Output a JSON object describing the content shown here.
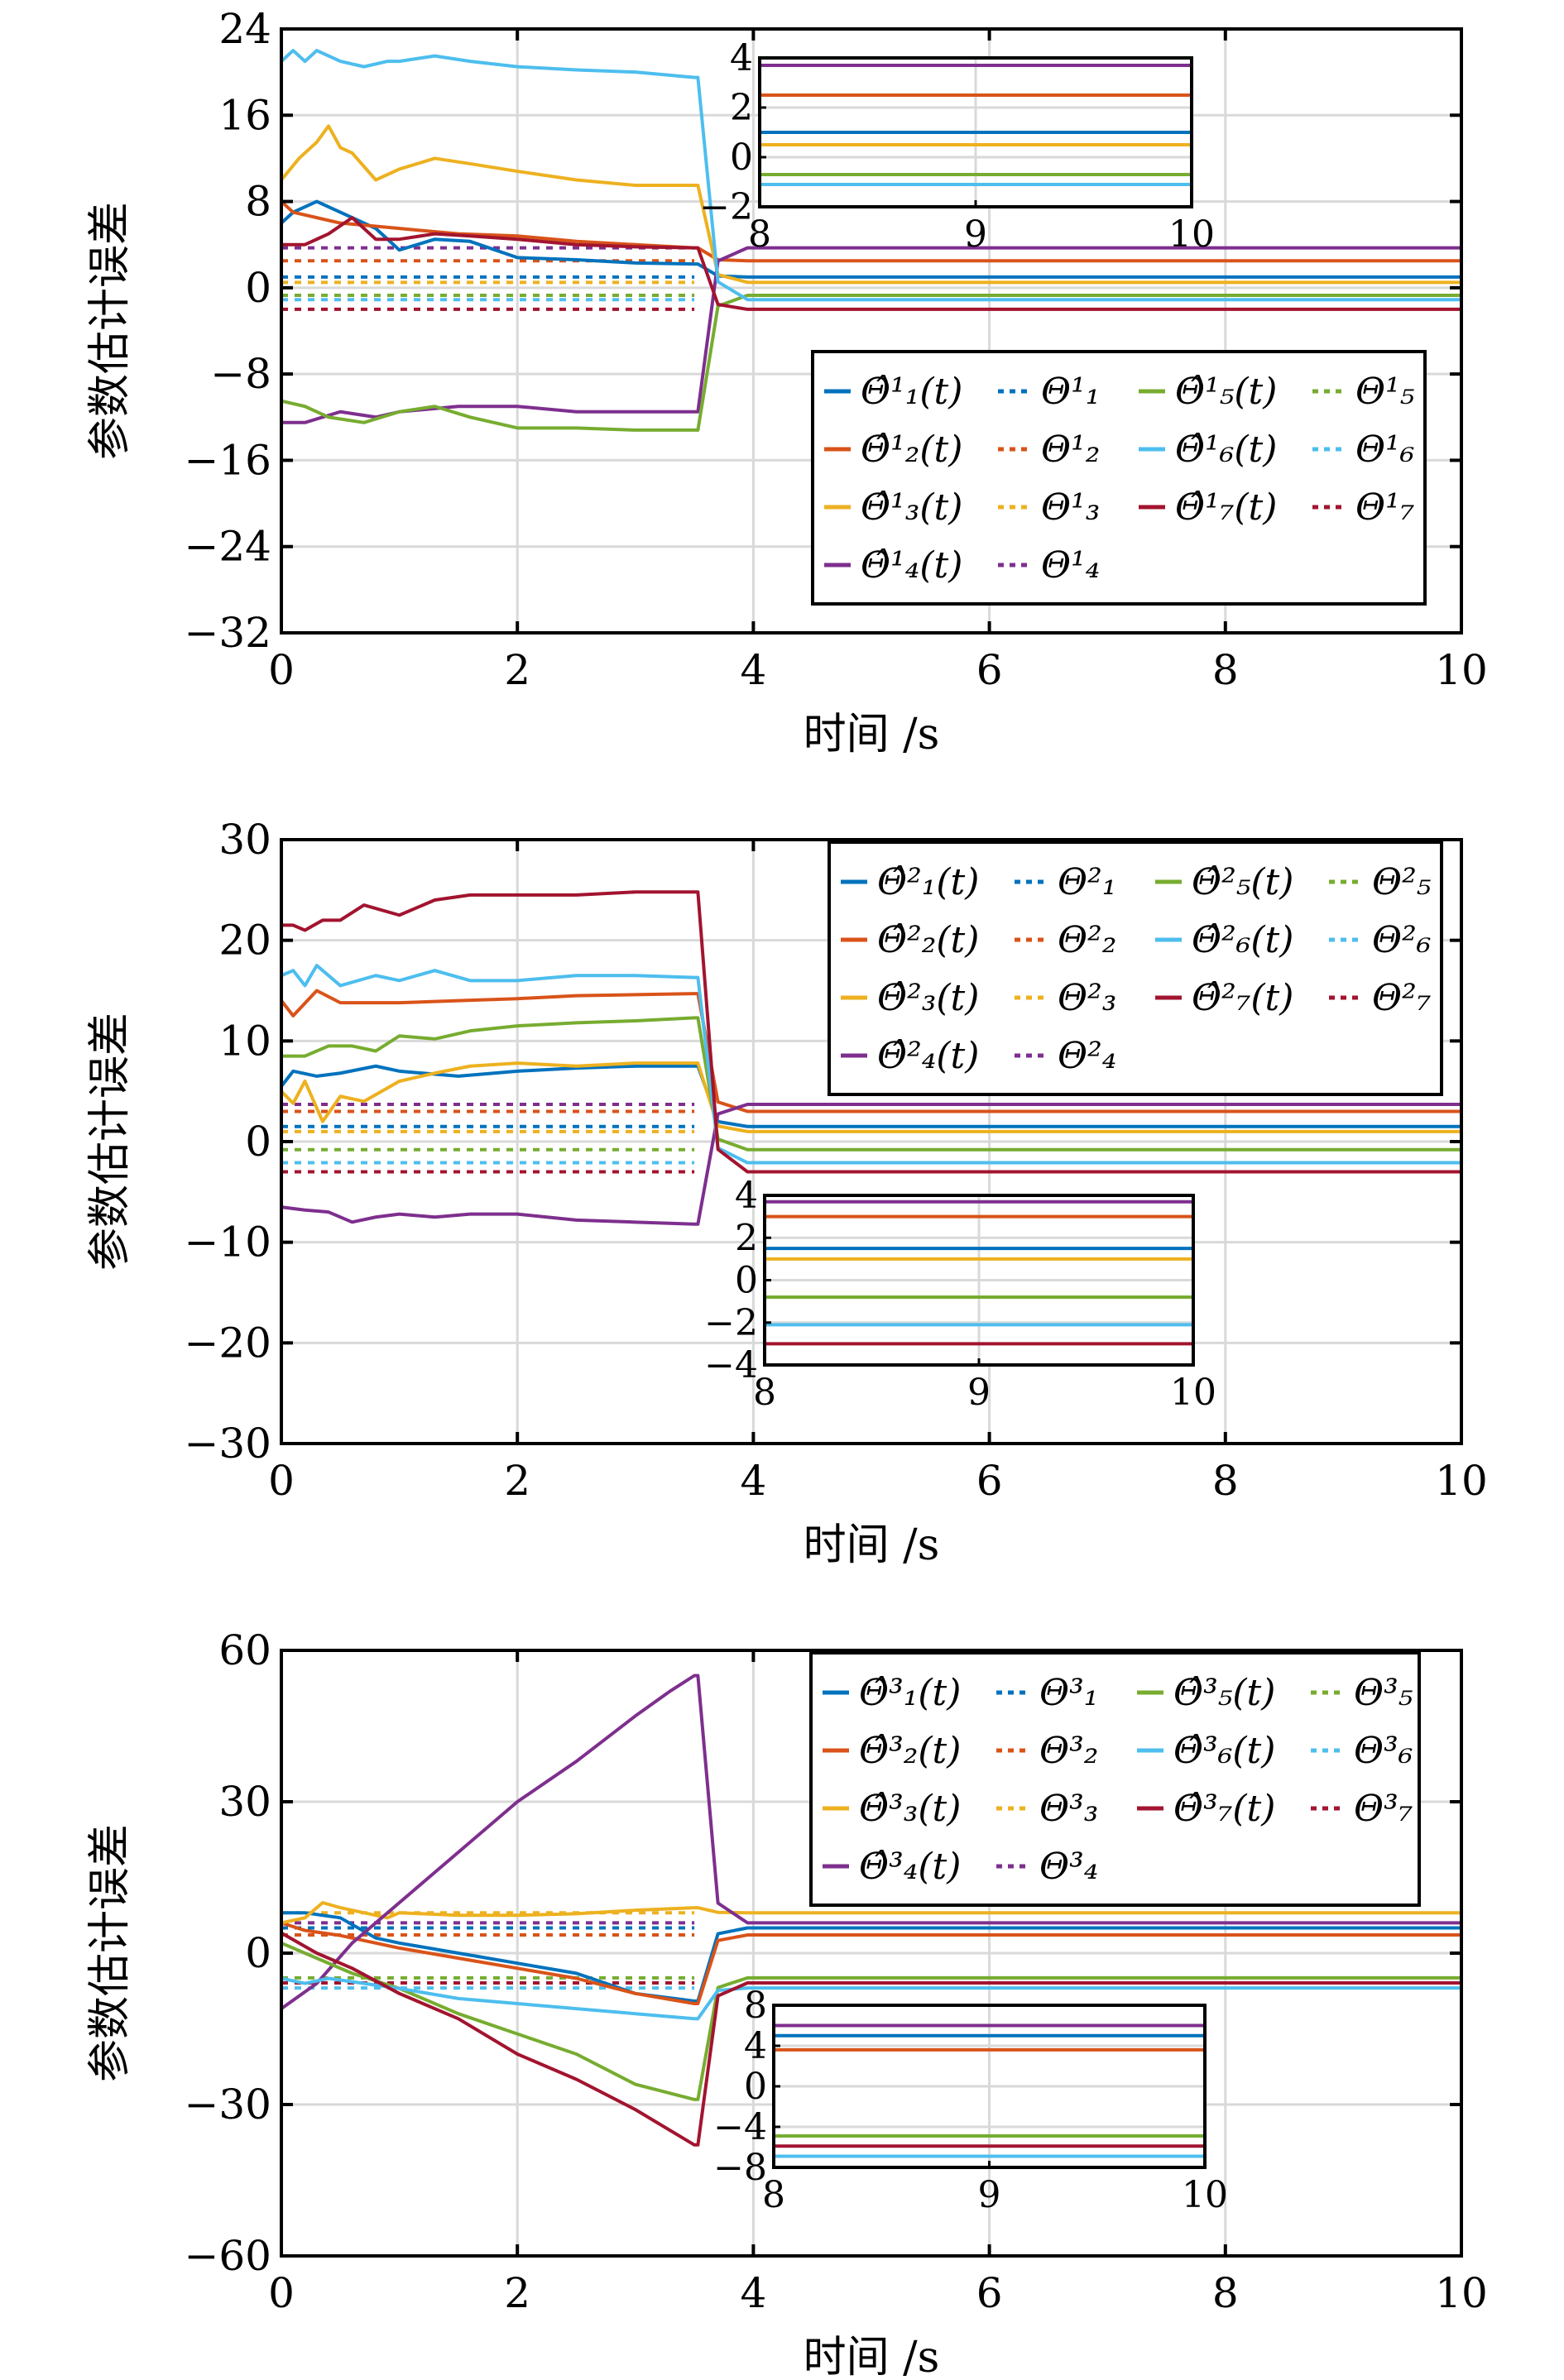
{
  "colors": [
    "#0072BD",
    "#D95319",
    "#EDB120",
    "#7E2F8E",
    "#77AC30",
    "#4DBEEE",
    "#A2142F"
  ],
  "chart_data": [
    {
      "type": "line",
      "title": "",
      "xlabel": "时间 /s",
      "ylabel": "参数估计误差",
      "xlim": [
        0,
        10
      ],
      "ylim": [
        -32,
        24
      ],
      "xticks": [
        "0",
        "2",
        "4",
        "6",
        "8",
        "10"
      ],
      "yticks": [
        "24",
        "16",
        "8",
        "0",
        "−8",
        "−16",
        "−24",
        "−32"
      ],
      "ytick_values": [
        24,
        16,
        8,
        0,
        -8,
        -16,
        -24,
        -32
      ],
      "xtick_values": [
        0,
        2,
        4,
        6,
        8,
        10
      ],
      "grid": true,
      "legend_position": "lower-right",
      "switch_time": 3.5,
      "legend": [
        {
          "est": "Θ̂¹₁(t)",
          "true": "Θ¹₁"
        },
        {
          "est": "Θ̂¹₂(t)",
          "true": "Θ¹₂"
        },
        {
          "est": "Θ̂¹₃(t)",
          "true": "Θ¹₃"
        },
        {
          "est": "Θ̂¹₄(t)",
          "true": "Θ¹₄"
        },
        {
          "est": "Θ̂¹₅(t)",
          "true": "Θ¹₅"
        },
        {
          "est": "Θ̂¹₆(t)",
          "true": "Θ¹₆"
        },
        {
          "est": "Θ̂¹₇(t)",
          "true": "Θ¹₇"
        }
      ],
      "series": [
        {
          "name": "Θ̂¹₁(t)",
          "true_value": 1.0,
          "x": [
            0,
            0.1,
            0.3,
            0.5,
            0.8,
            1.0,
            1.3,
            1.6,
            2.0,
            2.5,
            3.0,
            3.5
          ],
          "y": [
            6,
            7,
            8,
            7,
            5.5,
            3.5,
            4.5,
            4.3,
            2.8,
            2.6,
            2.3,
            2.2
          ]
        },
        {
          "name": "Θ̂¹₂(t)",
          "true_value": 2.5,
          "x": [
            0,
            0.1,
            0.3,
            0.5,
            0.8,
            1.0,
            1.5,
            2.0,
            2.5,
            3.0,
            3.5
          ],
          "y": [
            8,
            7,
            6.5,
            6,
            5.7,
            5.5,
            5,
            4.8,
            4.3,
            4,
            3.7
          ]
        },
        {
          "name": "Θ̂¹₃(t)",
          "true_value": 0.5,
          "x": [
            0,
            0.15,
            0.3,
            0.4,
            0.5,
            0.6,
            0.8,
            1.0,
            1.3,
            1.6,
            2.0,
            2.5,
            3.0,
            3.5
          ],
          "y": [
            10,
            12,
            13.5,
            15,
            13,
            12.5,
            10,
            11,
            12,
            11.5,
            10.8,
            10,
            9.5,
            9.5
          ]
        },
        {
          "name": "Θ̂¹₄(t)",
          "true_value": 3.7,
          "x": [
            0,
            0.2,
            0.5,
            0.8,
            1.0,
            1.5,
            2.0,
            2.5,
            3.0,
            3.5
          ],
          "y": [
            -12.5,
            -12.5,
            -11.5,
            -12,
            -11.5,
            -11,
            -11,
            -11.5,
            -11.5,
            -11.5
          ]
        },
        {
          "name": "Θ̂¹₅(t)",
          "true_value": -0.7,
          "x": [
            0,
            0.2,
            0.4,
            0.7,
            1.0,
            1.3,
            1.6,
            2.0,
            2.5,
            3.0,
            3.5
          ],
          "y": [
            -10.5,
            -11,
            -12,
            -12.5,
            -11.5,
            -11,
            -12,
            -13,
            -13,
            -13.2,
            -13.2
          ]
        },
        {
          "name": "Θ̂¹₆(t)",
          "true_value": -1.1,
          "x": [
            0,
            0.1,
            0.2,
            0.3,
            0.5,
            0.7,
            0.9,
            1.0,
            1.3,
            1.6,
            2.0,
            2.5,
            3.0,
            3.5
          ],
          "y": [
            21,
            22,
            21,
            22,
            21,
            20.5,
            21,
            21,
            21.5,
            21,
            20.5,
            20.2,
            20,
            19.5
          ]
        },
        {
          "name": "Θ̂¹₇(t)",
          "true_value": -2.0,
          "x": [
            0,
            0.2,
            0.4,
            0.6,
            0.8,
            1.0,
            1.3,
            1.6,
            2.0,
            2.5,
            3.0,
            3.5
          ],
          "y": [
            4,
            4,
            5,
            6.5,
            4.5,
            4.5,
            5,
            4.8,
            4.5,
            4,
            3.8,
            3.7
          ]
        }
      ],
      "inset": {
        "xlim": [
          8,
          10
        ],
        "ylim": [
          -2,
          4
        ],
        "xticks": [
          "8",
          "9",
          "10"
        ],
        "xtick_values": [
          8,
          9,
          10
        ],
        "yticks": [
          "4",
          "2",
          "0",
          "−2"
        ],
        "ytick_values": [
          4,
          2,
          0,
          -2
        ],
        "values": [
          1.0,
          2.5,
          0.5,
          3.7,
          -0.7,
          -1.1,
          -2.0
        ]
      }
    },
    {
      "type": "line",
      "title": "",
      "xlabel": "时间 /s",
      "ylabel": "参数估计误差",
      "xlim": [
        0,
        10
      ],
      "ylim": [
        -30,
        30
      ],
      "xticks": [
        "0",
        "2",
        "4",
        "6",
        "8",
        "10"
      ],
      "yticks": [
        "30",
        "20",
        "10",
        "0",
        "−10",
        "−20",
        "−30"
      ],
      "ytick_values": [
        30,
        20,
        10,
        0,
        -10,
        -20,
        -30
      ],
      "xtick_values": [
        0,
        2,
        4,
        6,
        8,
        10
      ],
      "grid": true,
      "legend_position": "upper-right",
      "switch_time": 3.5,
      "legend": [
        {
          "est": "Θ̂²₁(t)",
          "true": "Θ²₁"
        },
        {
          "est": "Θ̂²₂(t)",
          "true": "Θ²₂"
        },
        {
          "est": "Θ̂²₃(t)",
          "true": "Θ²₃"
        },
        {
          "est": "Θ̂²₄(t)",
          "true": "Θ²₄"
        },
        {
          "est": "Θ̂²₅(t)",
          "true": "Θ²₅"
        },
        {
          "est": "Θ̂²₆(t)",
          "true": "Θ²₆"
        },
        {
          "est": "Θ̂²₇(t)",
          "true": "Θ²₇"
        }
      ],
      "series": [
        {
          "name": "Θ̂²₁(t)",
          "true_value": 1.5,
          "x": [
            0,
            0.1,
            0.3,
            0.5,
            0.8,
            1.0,
            1.5,
            2.0,
            2.5,
            3.0,
            3.5
          ],
          "y": [
            5.5,
            7,
            6.5,
            6.8,
            7.5,
            7,
            6.5,
            7,
            7.3,
            7.5,
            7.5
          ]
        },
        {
          "name": "Θ̂²₂(t)",
          "true_value": 3.0,
          "x": [
            0,
            0.1,
            0.3,
            0.5,
            1.0,
            1.5,
            2.0,
            2.5,
            3.0,
            3.5
          ],
          "y": [
            14,
            12.5,
            15,
            13.8,
            13.8,
            14,
            14.2,
            14.5,
            14.6,
            14.7
          ]
        },
        {
          "name": "Θ̂²₃(t)",
          "true_value": 1.0,
          "x": [
            0,
            0.1,
            0.2,
            0.35,
            0.5,
            0.7,
            1.0,
            1.3,
            1.6,
            2.0,
            2.5,
            3.0,
            3.5
          ],
          "y": [
            5,
            3.8,
            6,
            2,
            4.5,
            4,
            6,
            6.8,
            7.5,
            7.8,
            7.5,
            7.8,
            7.8
          ]
        },
        {
          "name": "Θ̂²₄(t)",
          "true_value": 3.7,
          "x": [
            0,
            0.2,
            0.4,
            0.6,
            0.8,
            1.0,
            1.3,
            1.6,
            2.0,
            2.5,
            3.0,
            3.5
          ],
          "y": [
            -6.5,
            -6.8,
            -7,
            -8,
            -7.5,
            -7.2,
            -7.5,
            -7.2,
            -7.2,
            -7.8,
            -8,
            -8.2
          ]
        },
        {
          "name": "Θ̂²₅(t)",
          "true_value": -0.8,
          "x": [
            0,
            0.2,
            0.4,
            0.6,
            0.8,
            1.0,
            1.3,
            1.6,
            2.0,
            2.5,
            3.0,
            3.5
          ],
          "y": [
            8.5,
            8.5,
            9.5,
            9.5,
            9,
            10.5,
            10.2,
            11,
            11.5,
            11.8,
            12,
            12.3
          ]
        },
        {
          "name": "Θ̂²₆(t)",
          "true_value": -2.1,
          "x": [
            0,
            0.1,
            0.2,
            0.3,
            0.5,
            0.8,
            1.0,
            1.3,
            1.6,
            2.0,
            2.5,
            3.0,
            3.5
          ],
          "y": [
            16.5,
            17,
            15.5,
            17.5,
            15.5,
            16.5,
            16,
            17,
            16,
            16,
            16.5,
            16.5,
            16.3
          ]
        },
        {
          "name": "Θ̂²₇(t)",
          "true_value": -3.0,
          "x": [
            0,
            0.1,
            0.2,
            0.35,
            0.5,
            0.7,
            1.0,
            1.3,
            1.6,
            2.0,
            2.5,
            3.0,
            3.5
          ],
          "y": [
            21.5,
            21.5,
            21,
            22,
            22,
            23.5,
            22.5,
            24,
            24.5,
            24.5,
            24.5,
            24.8,
            24.8
          ]
        }
      ],
      "inset": {
        "xlim": [
          8,
          10
        ],
        "ylim": [
          -4,
          4
        ],
        "xticks": [
          "8",
          "9",
          "10"
        ],
        "xtick_values": [
          8,
          9,
          10
        ],
        "yticks": [
          "4",
          "2",
          "0",
          "−2",
          "−4"
        ],
        "ytick_values": [
          4,
          2,
          0,
          -2,
          -4
        ],
        "values": [
          1.5,
          3.0,
          1.0,
          3.7,
          -0.8,
          -2.1,
          -3.0
        ]
      }
    },
    {
      "type": "line",
      "title": "",
      "xlabel": "时间 /s",
      "ylabel": "参数估计误差",
      "xlim": [
        0,
        10
      ],
      "ylim": [
        -60,
        60
      ],
      "xticks": [
        "0",
        "2",
        "4",
        "6",
        "8",
        "10"
      ],
      "yticks": [
        "60",
        "30",
        "0",
        "−30",
        "−60"
      ],
      "ytick_values": [
        60,
        30,
        0,
        -30,
        -60
      ],
      "xtick_values": [
        0,
        2,
        4,
        6,
        8,
        10
      ],
      "grid": true,
      "legend_position": "upper-right",
      "switch_time": 3.5,
      "legend": [
        {
          "est": "Θ̂³₁(t)",
          "true": "Θ³₁"
        },
        {
          "est": "Θ̂³₂(t)",
          "true": "Θ³₂"
        },
        {
          "est": "Θ̂³₃(t)",
          "true": "Θ³₃"
        },
        {
          "est": "Θ̂³₄(t)",
          "true": "Θ³₄"
        },
        {
          "est": "Θ̂³₅(t)",
          "true": "Θ³₅"
        },
        {
          "est": "Θ̂³₆(t)",
          "true": "Θ³₆"
        },
        {
          "est": "Θ̂³₇(t)",
          "true": "Θ³₇"
        }
      ],
      "series": [
        {
          "name": "Θ̂³₁(t)",
          "true_value": 5.0,
          "x": [
            0,
            0.2,
            0.5,
            0.8,
            1.0,
            1.5,
            2.0,
            2.5,
            3.0,
            3.5
          ],
          "y": [
            8,
            8,
            7,
            3,
            2,
            0,
            -2,
            -4,
            -8,
            -9.5
          ]
        },
        {
          "name": "Θ̂³₂(t)",
          "true_value": 3.6,
          "x": [
            0,
            0.2,
            0.5,
            0.8,
            1.0,
            1.5,
            2.0,
            2.5,
            3.0,
            3.5
          ],
          "y": [
            6,
            4.5,
            3.5,
            2,
            1,
            -1,
            -3,
            -5,
            -8,
            -10
          ]
        },
        {
          "name": "Θ̂³₃(t)",
          "true_value": 8.0,
          "x": [
            0,
            0.2,
            0.35,
            0.5,
            0.7,
            0.9,
            1.0,
            1.5,
            2.0,
            2.5,
            3.0,
            3.5
          ],
          "y": [
            6,
            7,
            10,
            9,
            8,
            7,
            8,
            7.5,
            7.5,
            7.8,
            8.5,
            9
          ]
        },
        {
          "name": "Θ̂³₄(t)",
          "true_value": 6.0,
          "x": [
            0,
            0.3,
            0.6,
            1.0,
            1.5,
            2.0,
            2.5,
            3.0,
            3.3,
            3.5
          ],
          "y": [
            -11,
            -6,
            2,
            10,
            20,
            30,
            38,
            47,
            52,
            55
          ]
        },
        {
          "name": "Θ̂³₅(t)",
          "true_value": -4.9,
          "x": [
            0,
            0.3,
            0.6,
            1.0,
            1.5,
            2.0,
            2.5,
            3.0,
            3.5
          ],
          "y": [
            2,
            -1,
            -4,
            -7,
            -12,
            -16,
            -20,
            -26,
            -29
          ]
        },
        {
          "name": "Θ̂³₆(t)",
          "true_value": -6.9,
          "x": [
            0,
            0.2,
            0.4,
            0.7,
            1.0,
            1.5,
            2.0,
            2.5,
            3.0,
            3.5
          ],
          "y": [
            -5,
            -6,
            -5,
            -6,
            -7,
            -9,
            -10,
            -11,
            -12,
            -13
          ]
        },
        {
          "name": "Θ̂³₇(t)",
          "true_value": -5.9,
          "x": [
            0,
            0.3,
            0.6,
            1.0,
            1.5,
            2.0,
            2.5,
            3.0,
            3.5
          ],
          "y": [
            4,
            0,
            -3,
            -8,
            -13,
            -20,
            -25,
            -31,
            -38
          ]
        }
      ],
      "inset": {
        "xlim": [
          8,
          10
        ],
        "ylim": [
          -8,
          8
        ],
        "xticks": [
          "8",
          "9",
          "10"
        ],
        "xtick_values": [
          8,
          9,
          10
        ],
        "yticks": [
          "8",
          "4",
          "0",
          "−4",
          "−8"
        ],
        "ytick_values": [
          8,
          4,
          0,
          -4,
          -8
        ],
        "values": [
          5.0,
          3.6,
          8.0,
          6.0,
          -4.9,
          -6.9,
          -5.9
        ]
      }
    }
  ]
}
